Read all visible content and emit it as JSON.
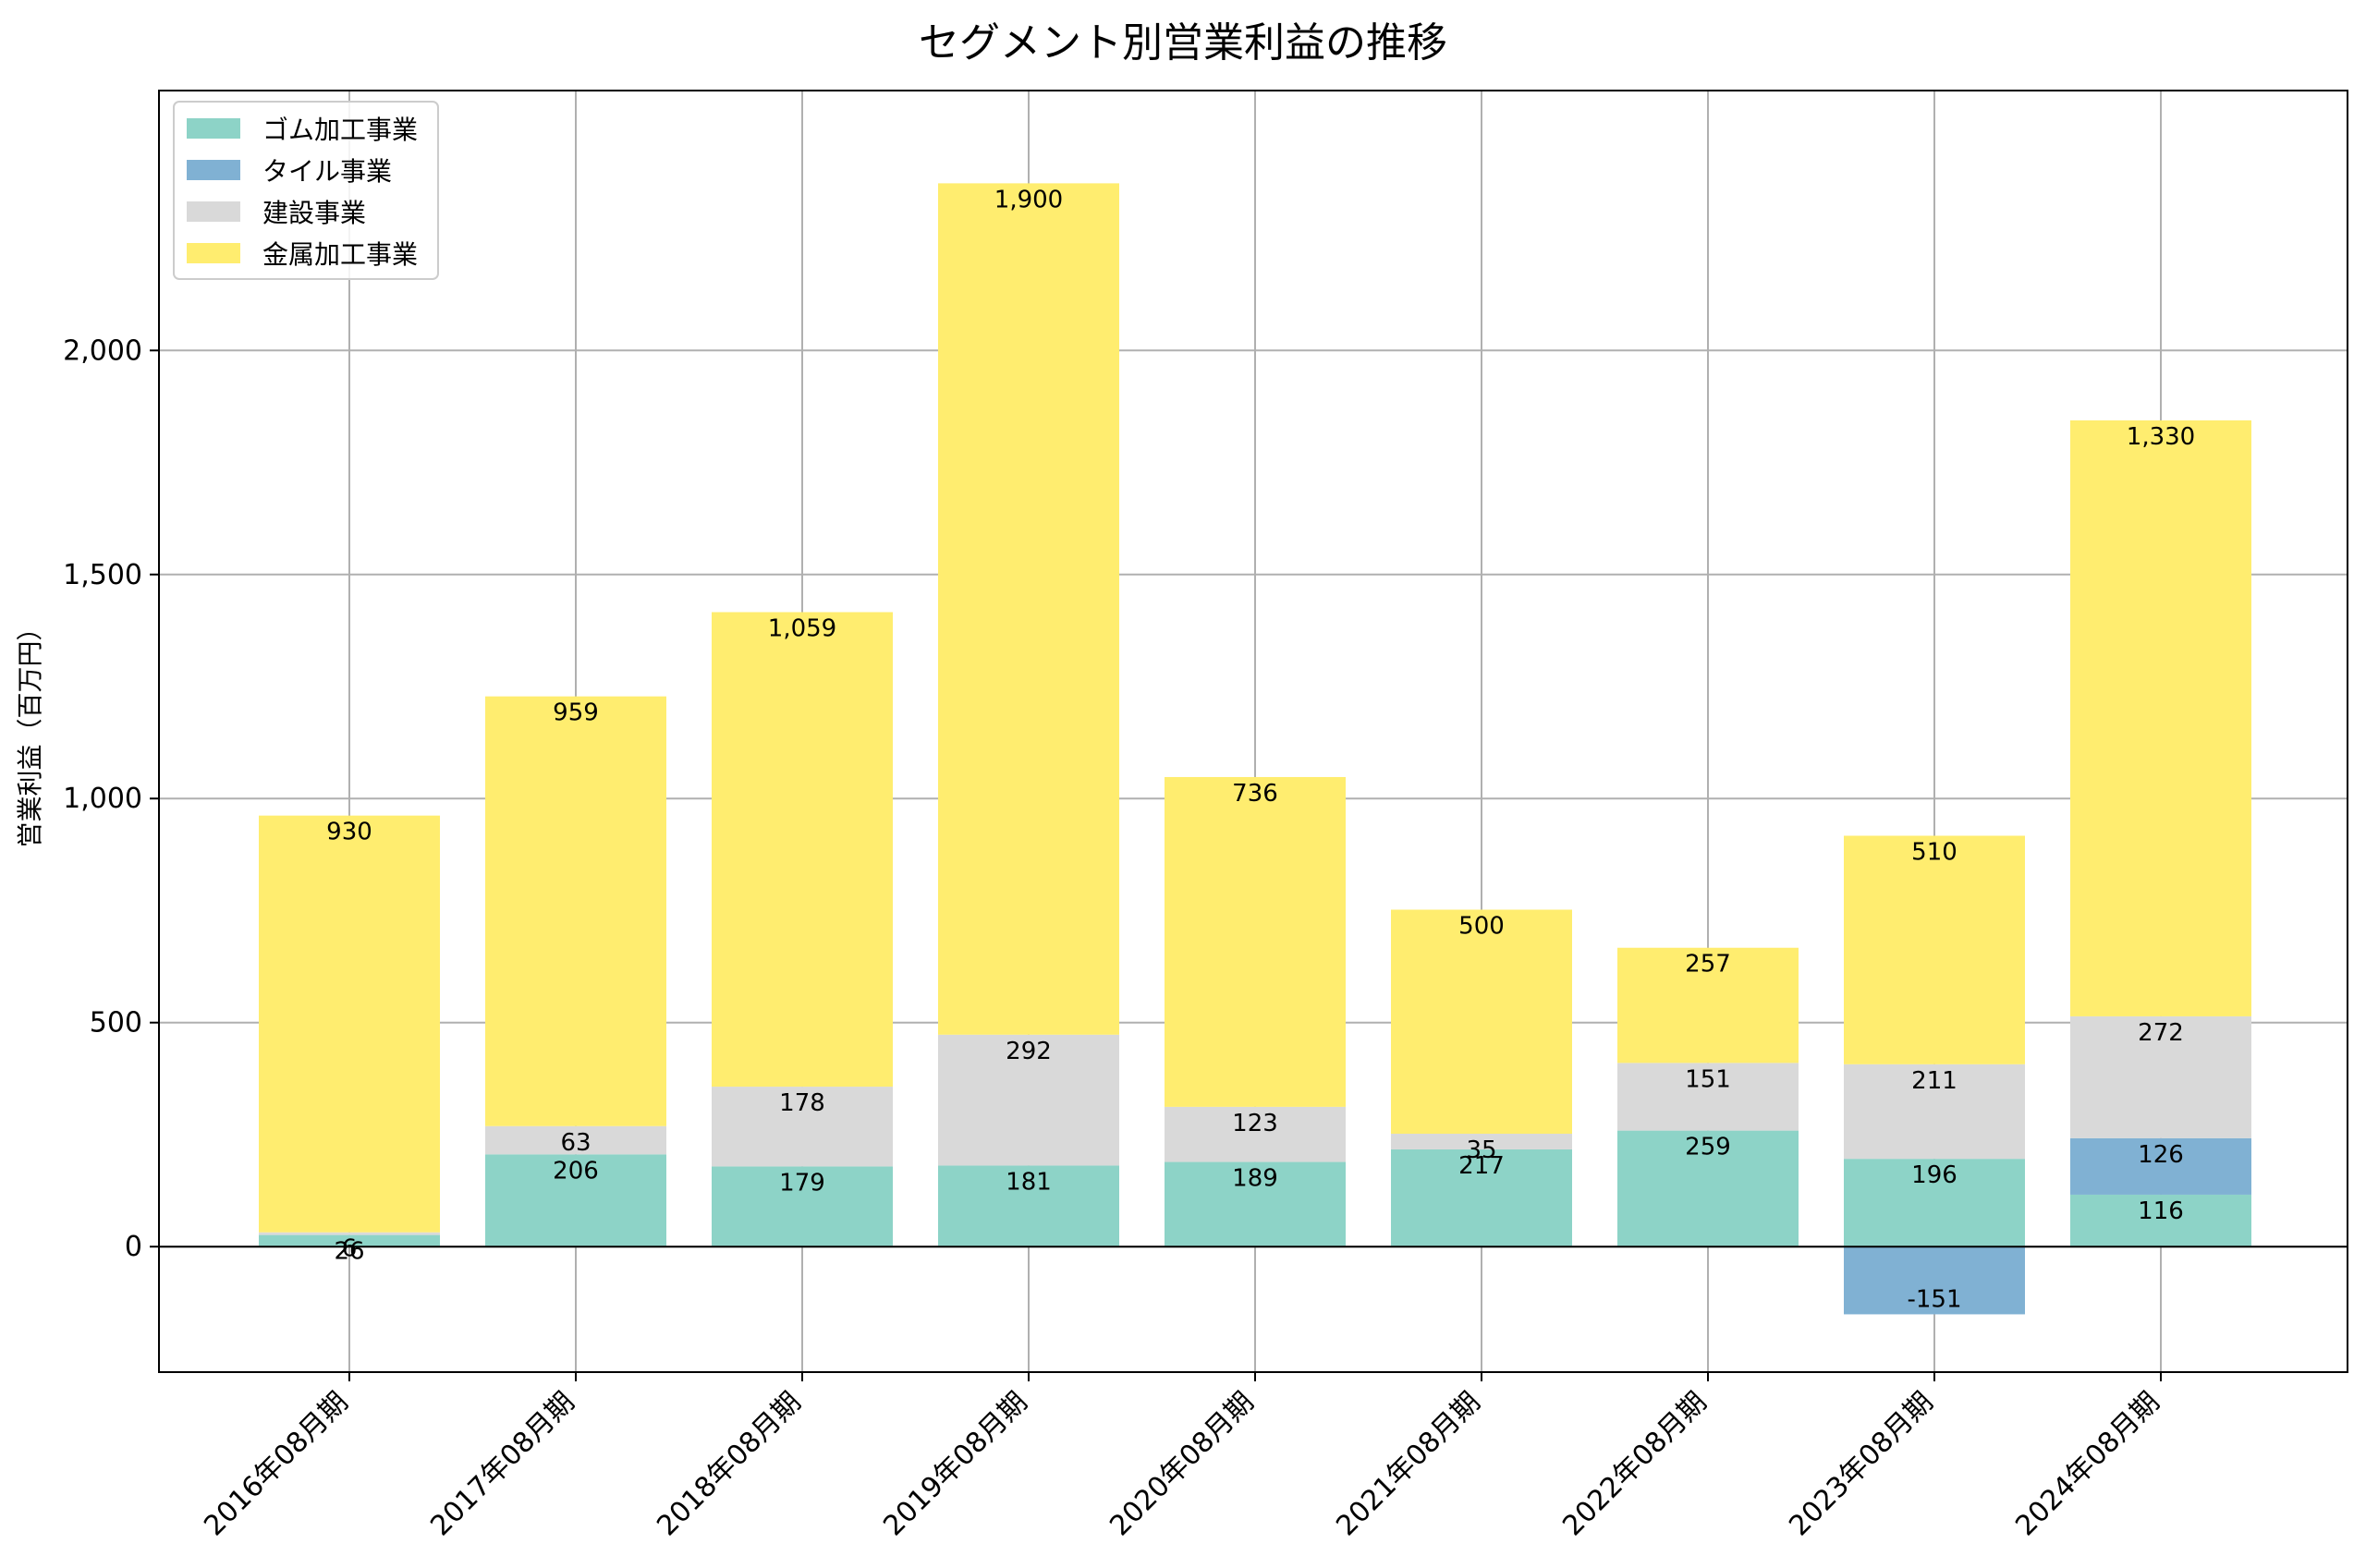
{
  "chart_data": {
    "type": "bar",
    "stacked": true,
    "title": "セグメント別営業利益の推移",
    "xlabel": "",
    "ylabel": "営業利益（百万円）",
    "ylim": [
      -280,
      2580
    ],
    "yticks": [
      0,
      500,
      1000,
      1500,
      2000
    ],
    "ytick_labels": [
      "0",
      "500",
      "1,000",
      "1,500",
      "2,000"
    ],
    "grid": true,
    "legend_position": "top-left",
    "categories": [
      "2016年08月期",
      "2017年08月期",
      "2018年08月期",
      "2019年08月期",
      "2020年08月期",
      "2021年08月期",
      "2022年08月期",
      "2023年08月期",
      "2024年08月期"
    ],
    "series": [
      {
        "name": "ゴム加工事業",
        "color": "#8dd3c7",
        "values": [
          26,
          206,
          179,
          181,
          189,
          217,
          259,
          196,
          116
        ],
        "labels": [
          "26",
          "206",
          "179",
          "181",
          "189",
          "217",
          "259",
          "196",
          "116"
        ]
      },
      {
        "name": "タイル事業",
        "color": "#80b1d3",
        "values": [
          null,
          null,
          null,
          null,
          null,
          null,
          null,
          -151,
          126
        ],
        "labels": [
          "",
          "",
          "",
          "",
          "",
          "",
          "",
          "-151",
          "126"
        ]
      },
      {
        "name": "建設事業",
        "color": "#d9d9d9",
        "values": [
          6,
          63,
          178,
          292,
          123,
          35,
          151,
          211,
          272
        ],
        "labels": [
          "6",
          "63",
          "178",
          "292",
          "123",
          "35",
          "151",
          "211",
          "272"
        ]
      },
      {
        "name": "金属加工事業",
        "color": "#ffed6f",
        "values": [
          930,
          959,
          1059,
          1900,
          736,
          500,
          257,
          510,
          1330
        ],
        "labels": [
          "930",
          "959",
          "1,059",
          "1,900",
          "736",
          "500",
          "257",
          "510",
          "1,330"
        ]
      }
    ]
  }
}
